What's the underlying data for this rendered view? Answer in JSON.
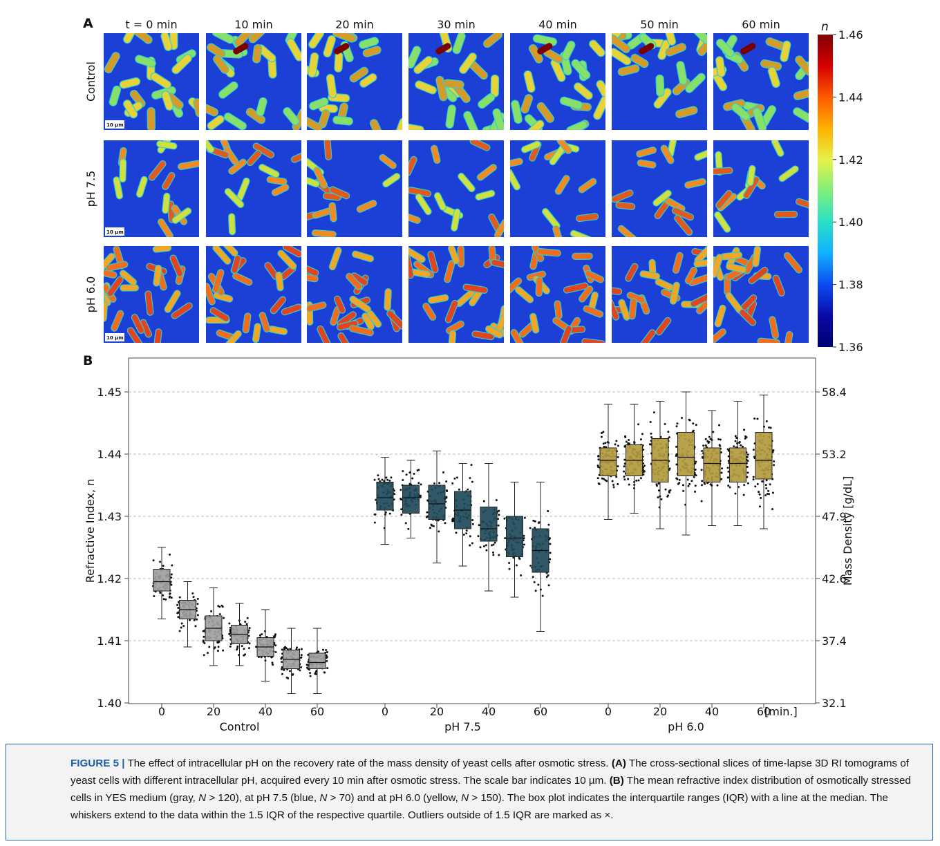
{
  "panel_a": {
    "label": "A",
    "time_labels": [
      "t = 0 min",
      "10 min",
      "20 min",
      "30 min",
      "40 min",
      "50 min",
      "60 min"
    ],
    "row_labels": [
      "Control",
      "pH 7.5",
      "pH 6.0"
    ],
    "scale_bar_label": "10 µm",
    "colorbar": {
      "title": "n",
      "ticks": [
        "1.46",
        "1.44",
        "1.42",
        "1.40",
        "1.38",
        "1.36"
      ],
      "colors": [
        "#7f0000",
        "#d40000",
        "#ff5a00",
        "#ffb000",
        "#e6f24a",
        "#7ef07a",
        "#28e0c8",
        "#12b0ff",
        "#0a4cf0",
        "#0a0aa8",
        "#000070"
      ]
    },
    "cell_colors": {
      "background": "#1c3fd6",
      "control": [
        "#e8d23a",
        "#d49a2a",
        "#88e06a"
      ],
      "ph75": [
        "#e05a20",
        "#f08a22",
        "#cfe040"
      ],
      "ph60": [
        "#e04420",
        "#f06d1e",
        "#f2a625"
      ]
    }
  },
  "panel_b": {
    "label": "B",
    "y_left_label": "Refractive Index, n",
    "y_right_label": "Mass Density [g/dL]",
    "y_left_ticks": [
      "1.40",
      "1.41",
      "1.42",
      "1.43",
      "1.44",
      "1.45"
    ],
    "y_right_ticks": [
      "32.1",
      "37.4",
      "42.6",
      "47.9",
      "53.2",
      "58.4"
    ],
    "x_ticks": [
      "0",
      "20",
      "40",
      "60",
      "0",
      "20",
      "40",
      "60",
      "0",
      "20",
      "40",
      "60"
    ],
    "x_unit": "[min.]",
    "group_labels": [
      "Control",
      "pH 7.5",
      "pH 6.0"
    ]
  },
  "chart_data": {
    "type": "box",
    "xlabel": "",
    "ylabel": "Refractive Index, n",
    "y2label": "Mass Density [g/dL]",
    "ylim": [
      1.4,
      1.455
    ],
    "grid": true,
    "categories": [
      "0",
      "10",
      "20",
      "30",
      "40",
      "50",
      "60"
    ],
    "series": [
      {
        "name": "Control",
        "color": "#a0a0a0",
        "boxes": [
          {
            "time": 0,
            "whisker_low": 1.4135,
            "q1": 1.418,
            "median": 1.4195,
            "q3": 1.4215,
            "whisker_high": 1.425
          },
          {
            "time": 10,
            "whisker_low": 1.409,
            "q1": 1.4135,
            "median": 1.415,
            "q3": 1.4165,
            "whisker_high": 1.4195
          },
          {
            "time": 20,
            "whisker_low": 1.406,
            "q1": 1.41,
            "median": 1.412,
            "q3": 1.414,
            "whisker_high": 1.4185
          },
          {
            "time": 30,
            "whisker_low": 1.406,
            "q1": 1.4095,
            "median": 1.411,
            "q3": 1.4125,
            "whisker_high": 1.416
          },
          {
            "time": 40,
            "whisker_low": 1.4035,
            "q1": 1.4075,
            "median": 1.409,
            "q3": 1.4105,
            "whisker_high": 1.415
          },
          {
            "time": 50,
            "whisker_low": 1.4015,
            "q1": 1.4055,
            "median": 1.407,
            "q3": 1.4085,
            "whisker_high": 1.412
          },
          {
            "time": 60,
            "whisker_low": 1.4015,
            "q1": 1.4055,
            "median": 1.4065,
            "q3": 1.408,
            "whisker_high": 1.412
          }
        ]
      },
      {
        "name": "pH 7.5",
        "color": "#1e4a5a",
        "boxes": [
          {
            "time": 0,
            "whisker_low": 1.4255,
            "q1": 1.431,
            "median": 1.433,
            "q3": 1.4355,
            "whisker_high": 1.4395
          },
          {
            "time": 10,
            "whisker_low": 1.4265,
            "q1": 1.4305,
            "median": 1.433,
            "q3": 1.435,
            "whisker_high": 1.439
          },
          {
            "time": 20,
            "whisker_low": 1.4225,
            "q1": 1.4295,
            "median": 1.432,
            "q3": 1.435,
            "whisker_high": 1.4405
          },
          {
            "time": 30,
            "whisker_low": 1.422,
            "q1": 1.428,
            "median": 1.431,
            "q3": 1.434,
            "whisker_high": 1.4385
          },
          {
            "time": 40,
            "whisker_low": 1.418,
            "q1": 1.426,
            "median": 1.428,
            "q3": 1.4315,
            "whisker_high": 1.4385
          },
          {
            "time": 50,
            "whisker_low": 1.417,
            "q1": 1.4235,
            "median": 1.4265,
            "q3": 1.43,
            "whisker_high": 1.4355
          },
          {
            "time": 60,
            "whisker_low": 1.4115,
            "q1": 1.421,
            "median": 1.4245,
            "q3": 1.428,
            "whisker_high": 1.4355
          }
        ]
      },
      {
        "name": "pH 6.0",
        "color": "#b39a3e",
        "boxes": [
          {
            "time": 0,
            "whisker_low": 1.4295,
            "q1": 1.4365,
            "median": 1.439,
            "q3": 1.441,
            "whisker_high": 1.448
          },
          {
            "time": 10,
            "whisker_low": 1.4305,
            "q1": 1.4365,
            "median": 1.439,
            "q3": 1.4415,
            "whisker_high": 1.448
          },
          {
            "time": 20,
            "whisker_low": 1.428,
            "q1": 1.4355,
            "median": 1.439,
            "q3": 1.4425,
            "whisker_high": 1.4485
          },
          {
            "time": 30,
            "whisker_low": 1.427,
            "q1": 1.4365,
            "median": 1.4395,
            "q3": 1.4435,
            "whisker_high": 1.45
          },
          {
            "time": 40,
            "whisker_low": 1.4285,
            "q1": 1.4355,
            "median": 1.4385,
            "q3": 1.441,
            "whisker_high": 1.447
          },
          {
            "time": 50,
            "whisker_low": 1.4285,
            "q1": 1.4355,
            "median": 1.4385,
            "q3": 1.441,
            "whisker_high": 1.4485
          },
          {
            "time": 60,
            "whisker_low": 1.428,
            "q1": 1.436,
            "median": 1.439,
            "q3": 1.4435,
            "whisker_high": 1.4495
          }
        ]
      }
    ]
  },
  "caption": {
    "label": "FIGURE 5 |",
    "parts": [
      {
        "t": " The effect of intracellular pH on the recovery rate of the mass density of yeast cells after osmotic stress. "
      },
      {
        "t": "(A)",
        "b": true
      },
      {
        "t": " The cross-sectional slices of time-lapse 3D RI tomograms of yeast cells with different intracellular pH, acquired every 10 min after osmotic stress. The scale bar indicates 10 µm. "
      },
      {
        "t": "(B)",
        "b": true
      },
      {
        "t": " The mean refractive index distribution of osmotically stressed cells in YES medium (gray, "
      },
      {
        "t": "N",
        "i": true
      },
      {
        "t": " > 120), at pH 7.5 (blue, "
      },
      {
        "t": "N",
        "i": true
      },
      {
        "t": " > 70) and at pH 6.0 (yellow, "
      },
      {
        "t": "N",
        "i": true
      },
      {
        "t": " > 150). The box plot indicates the interquartile ranges (IQR) with a line at the median. The whiskers extend to the data within the 1.5 IQR of the respective quartile. Outliers outside of 1.5 IQR are marked as ×."
      }
    ]
  }
}
